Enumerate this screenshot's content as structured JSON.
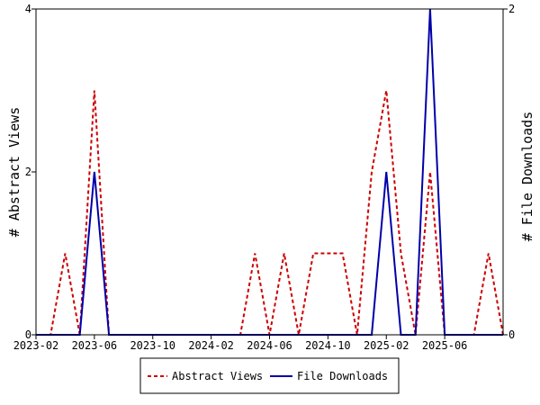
{
  "chart_data": {
    "type": "line",
    "x": [
      "2023-02",
      "2023-03",
      "2023-04",
      "2023-05",
      "2023-06",
      "2023-07",
      "2023-08",
      "2023-09",
      "2023-10",
      "2023-11",
      "2023-12",
      "2024-01",
      "2024-02",
      "2024-03",
      "2024-04",
      "2024-05",
      "2024-06",
      "2024-07",
      "2024-08",
      "2024-09",
      "2024-10",
      "2024-11",
      "2024-12",
      "2025-01",
      "2025-02",
      "2025-03",
      "2025-04",
      "2025-05",
      "2025-06",
      "2025-07",
      "2025-08",
      "2025-09",
      "2025-10"
    ],
    "x_tick_labels": [
      "2023-02",
      "2023-06",
      "2023-10",
      "2024-02",
      "2024-06",
      "2024-10",
      "2025-02",
      "2025-06"
    ],
    "series": [
      {
        "name": "Abstract Views",
        "axis": "left",
        "color": "#cc0000",
        "style": "dashed",
        "values": [
          0,
          0,
          1,
          0,
          3,
          0,
          0,
          0,
          0,
          0,
          0,
          0,
          0,
          0,
          0,
          1,
          0,
          1,
          0,
          1,
          1,
          1,
          0,
          2,
          3,
          1,
          0,
          2,
          0,
          0,
          0,
          1,
          0
        ]
      },
      {
        "name": "File Downloads",
        "axis": "right",
        "color": "#0000aa",
        "style": "solid",
        "values": [
          0,
          0,
          0,
          0,
          1,
          0,
          0,
          0,
          0,
          0,
          0,
          0,
          0,
          0,
          0,
          0,
          0,
          0,
          0,
          0,
          0,
          0,
          0,
          0,
          1,
          0,
          0,
          2,
          0,
          0,
          0,
          0,
          0
        ]
      }
    ],
    "ylabel_left": "# Abstract Views",
    "ylabel_right": "# File Downloads",
    "ylim_left": [
      0,
      4
    ],
    "ylim_right": [
      0,
      2
    ],
    "yticks_left": [
      0,
      2,
      4
    ],
    "yticks_right": [
      0,
      2
    ],
    "grid": false,
    "legend_placement": "bottom-center"
  }
}
